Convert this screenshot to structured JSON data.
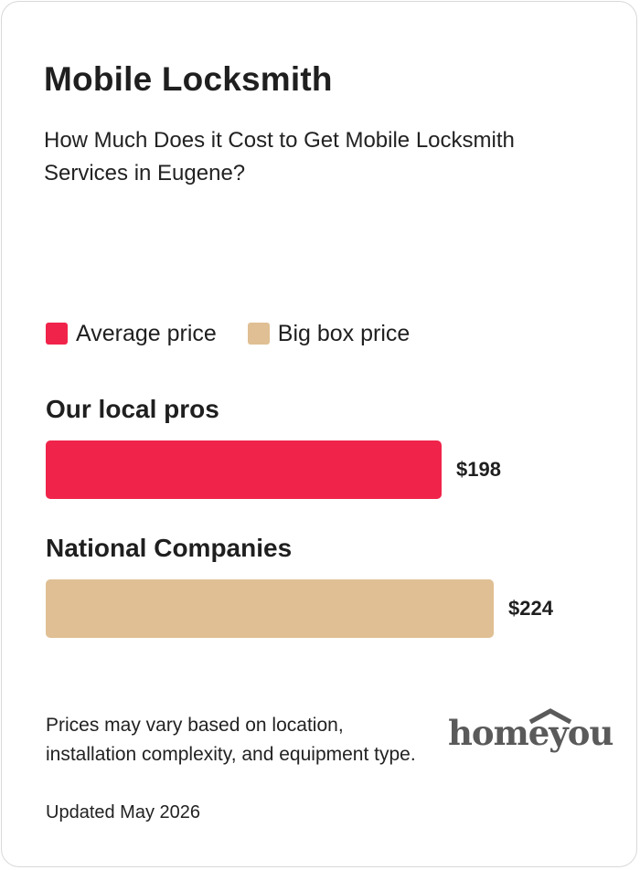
{
  "title": "Mobile Locksmith",
  "subtitle": "How Much Does it Cost to Get Mobile Locksmith Services in Eugene?",
  "legend": [
    {
      "label": "Average price",
      "color": "#f0244a"
    },
    {
      "label": "Big box price",
      "color": "#dfbf93"
    }
  ],
  "chart_data": {
    "type": "bar",
    "orientation": "horizontal",
    "categories": [
      "Our local pros",
      "National Companies"
    ],
    "values": [
      198,
      224
    ],
    "value_labels": [
      "$198",
      "$224"
    ],
    "colors": [
      "#f0244a",
      "#dfbf93"
    ],
    "series": [
      {
        "name": "Average price",
        "values": [
          198,
          null
        ]
      },
      {
        "name": "Big box price",
        "values": [
          null,
          224
        ]
      }
    ],
    "legend_position": "top-left",
    "grid": false
  },
  "footnote": "Prices may vary based on location, installation complexity, and equipment type.",
  "updated": "Updated May 2026",
  "logo": {
    "text": "homeyou",
    "icon": "house-roof-icon"
  }
}
